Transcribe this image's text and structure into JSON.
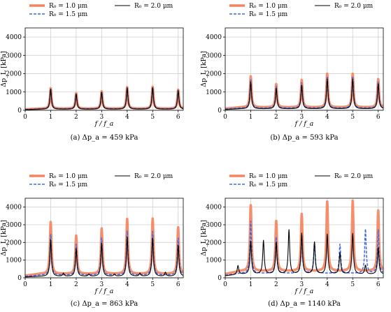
{
  "figure": {
    "panels": [
      {
        "legend": [
          {
            "label": "R₀ = 1.0 μm",
            "color": "#f4845f",
            "style": "solid-thick"
          },
          {
            "label": "R₀ = 1.5 μm",
            "color": "#4169e1",
            "style": "dashed"
          },
          {
            "label": "R₀ = 2.0 μm",
            "color": "#000000",
            "style": "solid-thin"
          }
        ],
        "ylabel": "Δp_L [kPa]",
        "xlabel": "f / f_a",
        "caption": "(a) Δp_a = 459 kPa"
      },
      {
        "legend": [
          {
            "label": "R₀ = 1.0 μm",
            "color": "#f4845f",
            "style": "solid-thick"
          },
          {
            "label": "R₀ = 1.5 μm",
            "color": "#4169e1",
            "style": "dashed"
          },
          {
            "label": "R₀ = 2.0 μm",
            "color": "#000000",
            "style": "solid-thin"
          }
        ],
        "ylabel": "Δp_L [kPa]",
        "xlabel": "f / f_a",
        "caption": "(b) Δp_a = 593 kPa"
      },
      {
        "legend": [
          {
            "label": "R₀ = 1.0 μm",
            "color": "#f4845f",
            "style": "solid-thick"
          },
          {
            "label": "R₀ = 1.5 μm",
            "color": "#4169e1",
            "style": "dashed"
          },
          {
            "label": "R₀ = 2.0 μm",
            "color": "#000000",
            "style": "solid-thin"
          }
        ],
        "ylabel": "Δp_L [kPa]",
        "xlabel": "f / f_a",
        "caption": "(c) Δp_a = 863 kPa"
      },
      {
        "legend": [
          {
            "label": "R₀ = 1.0 μm",
            "color": "#f4845f",
            "style": "solid-thick"
          },
          {
            "label": "R₀ = 1.5 μm",
            "color": "#4169e1",
            "style": "dashed"
          },
          {
            "label": "R₀ = 2.0 μm",
            "color": "#000000",
            "style": "solid-thin"
          }
        ],
        "ylabel": "Δp_L [kPa]",
        "xlabel": "f / f_a",
        "caption": "(d) Δp_a = 1140 kPa"
      }
    ]
  },
  "chart_data": [
    {
      "type": "line",
      "xlim": [
        0,
        6.2
      ],
      "ylim": [
        0,
        4500
      ],
      "xticks": [
        0,
        1,
        2,
        3,
        4,
        5,
        6
      ],
      "yticks": [
        0,
        1000,
        2000,
        3000,
        4000
      ],
      "grid": true,
      "legend_position": "top",
      "series": [
        {
          "name": "R₀ = 1.0 μm",
          "color": "#f4845f",
          "baseline": 90,
          "peaks": [
            {
              "x": 1,
              "y": 1200
            },
            {
              "x": 2,
              "y": 930
            },
            {
              "x": 3,
              "y": 1030
            },
            {
              "x": 4,
              "y": 1260
            },
            {
              "x": 5,
              "y": 1280
            },
            {
              "x": 6,
              "y": 1120
            }
          ]
        },
        {
          "name": "R₀ = 1.5 μm",
          "color": "#4169e1",
          "baseline": 75,
          "peaks": [
            {
              "x": 1,
              "y": 1180
            },
            {
              "x": 2,
              "y": 910
            },
            {
              "x": 3,
              "y": 1010
            },
            {
              "x": 4,
              "y": 1240
            },
            {
              "x": 5,
              "y": 1260
            },
            {
              "x": 6,
              "y": 1100
            }
          ]
        },
        {
          "name": "R₀ = 2.0 μm",
          "color": "#000000",
          "baseline": 60,
          "peaks": [
            {
              "x": 1,
              "y": 1160
            },
            {
              "x": 2,
              "y": 890
            },
            {
              "x": 3,
              "y": 990
            },
            {
              "x": 4,
              "y": 1220
            },
            {
              "x": 5,
              "y": 1240
            },
            {
              "x": 6,
              "y": 1080
            }
          ]
        }
      ]
    },
    {
      "type": "line",
      "xlim": [
        0,
        6.2
      ],
      "ylim": [
        0,
        4500
      ],
      "xticks": [
        0,
        1,
        2,
        3,
        4,
        5,
        6
      ],
      "yticks": [
        0,
        1000,
        2000,
        3000,
        4000
      ],
      "grid": true,
      "legend_position": "top",
      "series": [
        {
          "name": "R₀ = 1.0 μm",
          "color": "#f4845f",
          "baseline": 160,
          "peaks": [
            {
              "x": 1,
              "y": 1850
            },
            {
              "x": 2,
              "y": 1430
            },
            {
              "x": 3,
              "y": 1650
            },
            {
              "x": 4,
              "y": 1990
            },
            {
              "x": 5,
              "y": 1990
            },
            {
              "x": 6,
              "y": 1700
            }
          ]
        },
        {
          "name": "R₀ = 1.5 μm",
          "color": "#4169e1",
          "baseline": 120,
          "peaks": [
            {
              "x": 1,
              "y": 1700
            },
            {
              "x": 2,
              "y": 1300
            },
            {
              "x": 3,
              "y": 1500
            },
            {
              "x": 4,
              "y": 1850
            },
            {
              "x": 5,
              "y": 1850
            },
            {
              "x": 6,
              "y": 1550
            }
          ]
        },
        {
          "name": "R₀ = 2.0 μm",
          "color": "#000000",
          "baseline": 80,
          "peaks": [
            {
              "x": 1,
              "y": 1550
            },
            {
              "x": 2,
              "y": 1200
            },
            {
              "x": 3,
              "y": 1380
            },
            {
              "x": 4,
              "y": 1700
            },
            {
              "x": 5,
              "y": 1700
            },
            {
              "x": 6,
              "y": 1450
            }
          ]
        }
      ]
    },
    {
      "type": "line",
      "xlim": [
        0,
        6.2
      ],
      "ylim": [
        0,
        4500
      ],
      "xticks": [
        0,
        1,
        2,
        3,
        4,
        5,
        6
      ],
      "yticks": [
        0,
        1000,
        2000,
        3000,
        4000
      ],
      "grid": true,
      "legend_position": "top",
      "series": [
        {
          "name": "R₀ = 1.0 μm",
          "color": "#f4845f",
          "baseline": 220,
          "peaks": [
            {
              "x": 1,
              "y": 3150
            },
            {
              "x": 2,
              "y": 2380
            },
            {
              "x": 3,
              "y": 2780
            },
            {
              "x": 4,
              "y": 3320
            },
            {
              "x": 5,
              "y": 3340
            },
            {
              "x": 6,
              "y": 2850
            }
          ]
        },
        {
          "name": "R₀ = 1.5 μm",
          "color": "#4169e1",
          "baseline": 150,
          "peaks": [
            {
              "x": 1,
              "y": 2450
            },
            {
              "x": 2,
              "y": 1900
            },
            {
              "x": 3,
              "y": 2250
            },
            {
              "x": 4,
              "y": 2650
            },
            {
              "x": 5,
              "y": 2620
            },
            {
              "x": 6,
              "y": 2250
            }
          ]
        },
        {
          "name": "R₀ = 2.0 μm",
          "color": "#000000",
          "baseline": 80,
          "peaks": [
            {
              "x": 1,
              "y": 2150
            },
            {
              "x": 2,
              "y": 1650
            },
            {
              "x": 3,
              "y": 1950
            },
            {
              "x": 4,
              "y": 2300
            },
            {
              "x": 5,
              "y": 2250
            },
            {
              "x": 6,
              "y": 1850
            },
            {
              "x": 1.5,
              "y": 250
            },
            {
              "x": 2.5,
              "y": 200
            },
            {
              "x": 3.5,
              "y": 200
            },
            {
              "x": 4.5,
              "y": 250
            },
            {
              "x": 5.5,
              "y": 300
            }
          ]
        }
      ]
    },
    {
      "type": "line",
      "xlim": [
        0,
        6.2
      ],
      "ylim": [
        0,
        4500
      ],
      "xticks": [
        0,
        1,
        2,
        3,
        4,
        5,
        6
      ],
      "yticks": [
        0,
        1000,
        2000,
        3000,
        4000
      ],
      "grid": true,
      "legend_position": "top",
      "series": [
        {
          "name": "R₀ = 1.0 μm",
          "color": "#f4845f",
          "baseline": 380,
          "peaks": [
            {
              "x": 1,
              "y": 4100
            },
            {
              "x": 2,
              "y": 3200
            },
            {
              "x": 3,
              "y": 3600
            },
            {
              "x": 4,
              "y": 4300
            },
            {
              "x": 5,
              "y": 4350
            },
            {
              "x": 6,
              "y": 3800
            }
          ]
        },
        {
          "name": "R₀ = 1.5 μm",
          "color": "#4169e1",
          "baseline": 250,
          "peaks": [
            {
              "x": 1,
              "y": 3200
            },
            {
              "x": 2,
              "y": 2300
            },
            {
              "x": 3,
              "y": 2350
            },
            {
              "x": 3.5,
              "y": 2000
            },
            {
              "x": 4.5,
              "y": 1900
            },
            {
              "x": 5.5,
              "y": 2750
            },
            {
              "x": 6,
              "y": 2700
            }
          ]
        },
        {
          "name": "R₀ = 2.0 μm",
          "color": "#000000",
          "baseline": 200,
          "peaks": [
            {
              "x": 0.5,
              "y": 700
            },
            {
              "x": 1,
              "y": 2050
            },
            {
              "x": 1.5,
              "y": 2100
            },
            {
              "x": 2,
              "y": 2000
            },
            {
              "x": 2.5,
              "y": 2700
            },
            {
              "x": 3,
              "y": 2500
            },
            {
              "x": 3.5,
              "y": 2000
            },
            {
              "x": 4,
              "y": 2450
            },
            {
              "x": 4.5,
              "y": 1400
            },
            {
              "x": 5,
              "y": 2500
            },
            {
              "x": 5.5,
              "y": 700
            },
            {
              "x": 6,
              "y": 1700
            }
          ]
        }
      ]
    }
  ]
}
